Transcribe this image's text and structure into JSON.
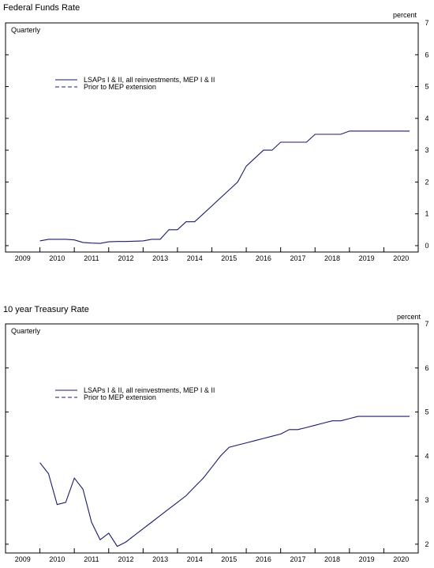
{
  "chart_data": [
    {
      "type": "line",
      "title": "Federal Funds Rate",
      "frequency_label": "Quarterly",
      "unit_label": "percent",
      "x_tick_labels": [
        "2009",
        "2010",
        "2011",
        "2012",
        "2013",
        "2014",
        "2015",
        "2016",
        "2017",
        "2018",
        "2019",
        "2020"
      ],
      "xlim": [
        2009.0,
        2021.0
      ],
      "ylim": [
        -0.2,
        7
      ],
      "y_ticks": [
        0,
        1,
        2,
        3,
        4,
        5,
        6,
        7
      ],
      "grid": false,
      "legend_position": "upper-left",
      "series": [
        {
          "name": "LSAPs I & II, all reinvestments, MEP I & II",
          "color": "#1a1a6e",
          "style": "solid",
          "x": [
            2010.0,
            2010.25,
            2010.5,
            2010.75,
            2011.0,
            2011.25,
            2011.5,
            2011.75,
            2012.0,
            2012.25,
            2012.5,
            2012.75,
            2013.0,
            2013.25,
            2013.5,
            2013.75,
            2014.0,
            2014.25,
            2014.5,
            2014.75,
            2015.0,
            2015.25,
            2015.5,
            2015.75,
            2016.0,
            2016.25,
            2016.5,
            2016.75,
            2017.0,
            2017.25,
            2017.5,
            2017.75,
            2018.0,
            2018.25,
            2018.5,
            2018.75,
            2019.0,
            2019.25,
            2019.5,
            2019.75,
            2020.0,
            2020.25,
            2020.5,
            2020.75
          ],
          "y": [
            0.15,
            0.2,
            0.2,
            0.2,
            0.18,
            0.1,
            0.08,
            0.07,
            0.12,
            0.13,
            0.13,
            0.14,
            0.15,
            0.2,
            0.2,
            0.5,
            0.5,
            0.75,
            0.75,
            1.0,
            1.25,
            1.5,
            1.75,
            2.0,
            2.5,
            2.75,
            3.0,
            3.0,
            3.25,
            3.25,
            3.25,
            3.25,
            3.5,
            3.5,
            3.5,
            3.5,
            3.6,
            3.6,
            3.6,
            3.6,
            3.6,
            3.6,
            3.6,
            3.6
          ]
        },
        {
          "name": "Prior to MEP extension",
          "color": "#1a1a6e",
          "style": "dashed",
          "x": [],
          "y": []
        }
      ]
    },
    {
      "type": "line",
      "title": "10 year Treasury Rate",
      "frequency_label": "Quarterly",
      "unit_label": "percent",
      "x_tick_labels": [
        "2009",
        "2010",
        "2011",
        "2012",
        "2013",
        "2014",
        "2015",
        "2016",
        "2017",
        "2018",
        "2019",
        "2020"
      ],
      "xlim": [
        2009.0,
        2021.0
      ],
      "ylim": [
        1.8,
        7
      ],
      "y_ticks": [
        2,
        3,
        4,
        5,
        6,
        7
      ],
      "grid": false,
      "legend_position": "upper-left",
      "series": [
        {
          "name": "LSAPs I & II, all reinvestments, MEP I & II",
          "color": "#1a1a6e",
          "style": "solid",
          "x": [
            2010.0,
            2010.25,
            2010.5,
            2010.75,
            2011.0,
            2011.25,
            2011.5,
            2011.75,
            2012.0,
            2012.25,
            2012.5,
            2012.75,
            2013.0,
            2013.25,
            2013.5,
            2013.75,
            2014.0,
            2014.25,
            2014.5,
            2014.75,
            2015.0,
            2015.25,
            2015.5,
            2015.75,
            2016.0,
            2016.25,
            2016.5,
            2016.75,
            2017.0,
            2017.25,
            2017.5,
            2017.75,
            2018.0,
            2018.25,
            2018.5,
            2018.75,
            2019.0,
            2019.25,
            2019.5,
            2019.75,
            2020.0,
            2020.25,
            2020.5,
            2020.75
          ],
          "y": [
            3.85,
            3.6,
            2.9,
            2.95,
            3.5,
            3.25,
            2.5,
            2.1,
            2.25,
            1.95,
            2.05,
            2.2,
            2.35,
            2.5,
            2.65,
            2.8,
            2.95,
            3.1,
            3.3,
            3.5,
            3.75,
            4.0,
            4.2,
            4.25,
            4.3,
            4.35,
            4.4,
            4.45,
            4.5,
            4.6,
            4.6,
            4.65,
            4.7,
            4.75,
            4.8,
            4.8,
            4.85,
            4.9,
            4.9,
            4.9,
            4.9,
            4.9,
            4.9,
            4.9
          ]
        },
        {
          "name": "Prior to MEP extension",
          "color": "#1a1a6e",
          "style": "dashed",
          "x": [],
          "y": []
        }
      ]
    }
  ]
}
